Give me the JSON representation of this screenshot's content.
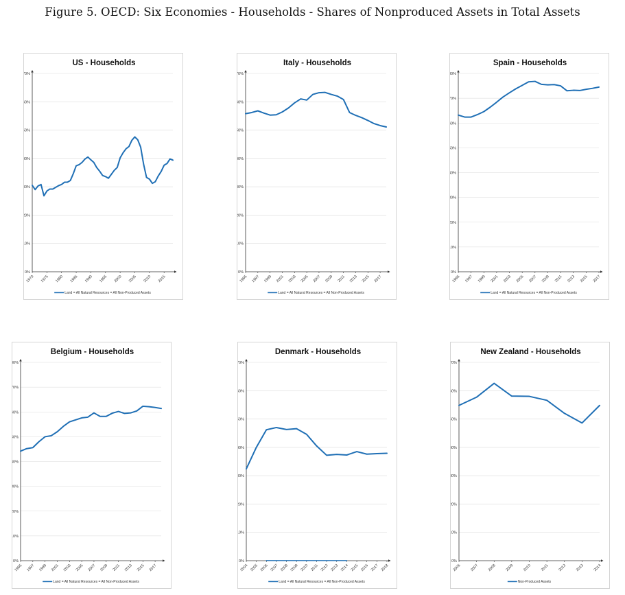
{
  "figure_title": "Figure 5. OECD: Six Economies - Households - Shares of Nonproduced Assets in Total Assets",
  "colors": {
    "series": "#1f6fb5",
    "grid": "#d9d9d9",
    "axis": "#333333"
  },
  "chart_data": [
    {
      "type": "line",
      "title": "US - Households",
      "ylim": [
        0,
        70
      ],
      "y_ticks": [
        "0%",
        "10%",
        "20%",
        "30%",
        "40%",
        "50%",
        "60%",
        "70%"
      ],
      "xlim": [
        1970,
        2018
      ],
      "x_ticks": [
        1970,
        1975,
        1980,
        1985,
        1990,
        1995,
        2000,
        2005,
        2010,
        2015
      ],
      "x_tick_labels": [
        "1970",
        "1975",
        "1980",
        "1985",
        "1990",
        "1995",
        "2000",
        "2005",
        "2010",
        "2015"
      ],
      "legend": "Land = All Natural Resources = All Non-Produced Assets",
      "series": [
        {
          "x": [
            1970,
            1971,
            1972,
            1973,
            1974,
            1975,
            1976,
            1977,
            1978,
            1979,
            1980,
            1981,
            1982,
            1983,
            1984,
            1985,
            1986,
            1987,
            1988,
            1989,
            1990,
            1991,
            1992,
            1993,
            1994,
            1995,
            1996,
            1997,
            1998,
            1999,
            2000,
            2001,
            2002,
            2003,
            2004,
            2005,
            2006,
            2007,
            2008,
            2009,
            2010,
            2011,
            2012,
            2013,
            2014,
            2015,
            2016,
            2017,
            2018
          ],
          "values": [
            30.5,
            29.0,
            30.3,
            30.8,
            26.8,
            28.5,
            29.2,
            29.2,
            29.8,
            30.4,
            30.8,
            31.6,
            31.6,
            32.2,
            34.6,
            37.4,
            37.8,
            38.6,
            39.8,
            40.5,
            39.5,
            38.6,
            36.8,
            35.5,
            34.0,
            33.6,
            33.0,
            34.4,
            35.8,
            36.8,
            40.2,
            42.0,
            43.4,
            44.2,
            46.4,
            47.6,
            46.6,
            44.0,
            38.0,
            33.3,
            32.7,
            31.2,
            31.8,
            33.8,
            35.4,
            37.6,
            38.2,
            39.8,
            39.4
          ]
        }
      ]
    },
    {
      "type": "line",
      "title": "Italy - Households",
      "ylim": [
        0,
        70
      ],
      "y_ticks": [
        "0%",
        "10%",
        "20%",
        "30%",
        "40%",
        "50%",
        "60%",
        "70%"
      ],
      "xlim": [
        1995,
        2018
      ],
      "x_ticks": [
        1995,
        1997,
        1999,
        2001,
        2003,
        2005,
        2007,
        2009,
        2011,
        2013,
        2015,
        2017
      ],
      "x_tick_labels": [
        "1995",
        "1997",
        "1999",
        "2001",
        "2003",
        "2005",
        "2007",
        "2009",
        "2011",
        "2013",
        "2015",
        "2017"
      ],
      "legend": "Land = All Natural Resources = All Non-Produced Assets",
      "series": [
        {
          "x": [
            1995,
            1996,
            1997,
            1998,
            1999,
            2000,
            2001,
            2002,
            2003,
            2004,
            2005,
            2006,
            2007,
            2008,
            2009,
            2010,
            2011,
            2012,
            2013,
            2014,
            2015,
            2016,
            2017,
            2018
          ],
          "values": [
            55.8,
            56.2,
            56.8,
            56.0,
            55.3,
            55.4,
            56.4,
            57.8,
            59.6,
            61.0,
            60.6,
            62.6,
            63.2,
            63.3,
            62.6,
            62.0,
            60.8,
            56.2,
            55.2,
            54.4,
            53.4,
            52.3,
            51.6,
            51.1
          ]
        }
      ]
    },
    {
      "type": "line",
      "title": "Spain - Households",
      "ylim": [
        0,
        80
      ],
      "y_ticks": [
        "0%",
        "10%",
        "20%",
        "30%",
        "40%",
        "50%",
        "60%",
        "70%",
        "80%"
      ],
      "xlim": [
        1995,
        2017
      ],
      "x_ticks": [
        1995,
        1997,
        1999,
        2001,
        2003,
        2005,
        2007,
        2009,
        2011,
        2013,
        2015,
        2017
      ],
      "x_tick_labels": [
        "1995",
        "1997",
        "1999",
        "2001",
        "2003",
        "2005",
        "2007",
        "2009",
        "2011",
        "2013",
        "2015",
        "2017"
      ],
      "legend": "Land = All Natural Resources = All Non-Produced Assets",
      "series": [
        {
          "x": [
            1995,
            1996,
            1997,
            1998,
            1999,
            2000,
            2001,
            2002,
            2003,
            2004,
            2005,
            2006,
            2007,
            2008,
            2009,
            2010,
            2011,
            2012,
            2013,
            2014,
            2015,
            2016,
            2017
          ],
          "values": [
            63.2,
            62.4,
            62.4,
            63.4,
            64.6,
            66.4,
            68.4,
            70.5,
            72.2,
            73.8,
            75.2,
            76.6,
            76.8,
            75.6,
            75.4,
            75.5,
            75.0,
            73.0,
            73.2,
            73.1,
            73.6,
            74.0,
            74.5
          ]
        }
      ]
    },
    {
      "type": "line",
      "title": "Belgium - Households",
      "ylim": [
        0,
        80
      ],
      "y_ticks": [
        "0%",
        "10%",
        "20%",
        "30%",
        "40%",
        "50%",
        "60%",
        "70%",
        "80%"
      ],
      "xlim": [
        1995,
        2018
      ],
      "x_ticks": [
        1995,
        1997,
        1999,
        2001,
        2003,
        2005,
        2007,
        2009,
        2011,
        2013,
        2015,
        2017
      ],
      "x_tick_labels": [
        "1995",
        "1997",
        "1999",
        "2001",
        "2003",
        "2005",
        "2007",
        "2009",
        "2011",
        "2013",
        "2015",
        "2017"
      ],
      "legend": "Land = All Natural Resources = All Non-Produced Assets",
      "series": [
        {
          "x": [
            1995,
            1996,
            1997,
            1998,
            1999,
            2000,
            2001,
            2002,
            2003,
            2004,
            2005,
            2006,
            2007,
            2008,
            2009,
            2010,
            2011,
            2012,
            2013,
            2014,
            2015,
            2016,
            2017,
            2018
          ],
          "values": [
            44.2,
            45.2,
            45.6,
            48.0,
            50.0,
            50.4,
            52.0,
            54.2,
            56.0,
            56.8,
            57.6,
            57.9,
            59.6,
            58.2,
            58.2,
            59.5,
            60.2,
            59.4,
            59.6,
            60.4,
            62.3,
            62.1,
            61.8,
            61.4
          ]
        }
      ]
    },
    {
      "type": "line",
      "title": "Denmark - Households",
      "ylim": [
        0,
        70
      ],
      "y_ticks": [
        "0%",
        "10%",
        "20%",
        "30%",
        "40%",
        "50%",
        "60%",
        "70%"
      ],
      "xlim": [
        2004,
        2018
      ],
      "x_ticks": [
        2004,
        2005,
        2006,
        2007,
        2008,
        2009,
        2010,
        2011,
        2012,
        2013,
        2014,
        2015,
        2016,
        2017,
        2018
      ],
      "x_tick_labels": [
        "2004",
        "2005",
        "2006",
        "2007",
        "2008",
        "2009",
        "2010",
        "2011",
        "2012",
        "2013",
        "2014",
        "2015",
        "2016",
        "2017",
        "2018"
      ],
      "legend": "Land = All Natural Resources = All Non-Produced Assets",
      "series": [
        {
          "x": [
            2004,
            2005,
            2006,
            2007,
            2008,
            2009,
            2010,
            2011,
            2012,
            2013,
            2014,
            2015,
            2016,
            2017,
            2018
          ],
          "values": [
            32.4,
            40.0,
            46.2,
            47.0,
            46.3,
            46.6,
            44.6,
            40.5,
            37.2,
            37.5,
            37.3,
            38.5,
            37.6,
            37.8,
            37.9
          ]
        },
        {
          "x": [
            2006,
            2007,
            2008,
            2009,
            2010,
            2011,
            2012,
            2013,
            2014
          ],
          "values": [
            0.05,
            0.05,
            0.05,
            0.05,
            0.05,
            0.05,
            0.05,
            0.05,
            0.05
          ]
        }
      ]
    },
    {
      "type": "line",
      "title": "New Zealand - Households",
      "ylim": [
        0,
        70
      ],
      "y_ticks": [
        "0%",
        "10%",
        "20%",
        "30%",
        "40%",
        "50%",
        "60%",
        "70%"
      ],
      "xlim": [
        2006,
        2014
      ],
      "x_ticks": [
        2006,
        2007,
        2008,
        2009,
        2010,
        2011,
        2012,
        2013,
        2014
      ],
      "x_tick_labels": [
        "2006",
        "2007",
        "2008",
        "2009",
        "2010",
        "2011",
        "2012",
        "2013",
        "2014"
      ],
      "legend": "Non-Produced Assets",
      "series": [
        {
          "x": [
            2006,
            2007,
            2008,
            2009,
            2010,
            2011,
            2012,
            2013,
            2014
          ],
          "values": [
            54.8,
            57.7,
            62.6,
            58.1,
            58.0,
            56.6,
            52.0,
            48.6,
            54.8
          ]
        }
      ]
    }
  ]
}
